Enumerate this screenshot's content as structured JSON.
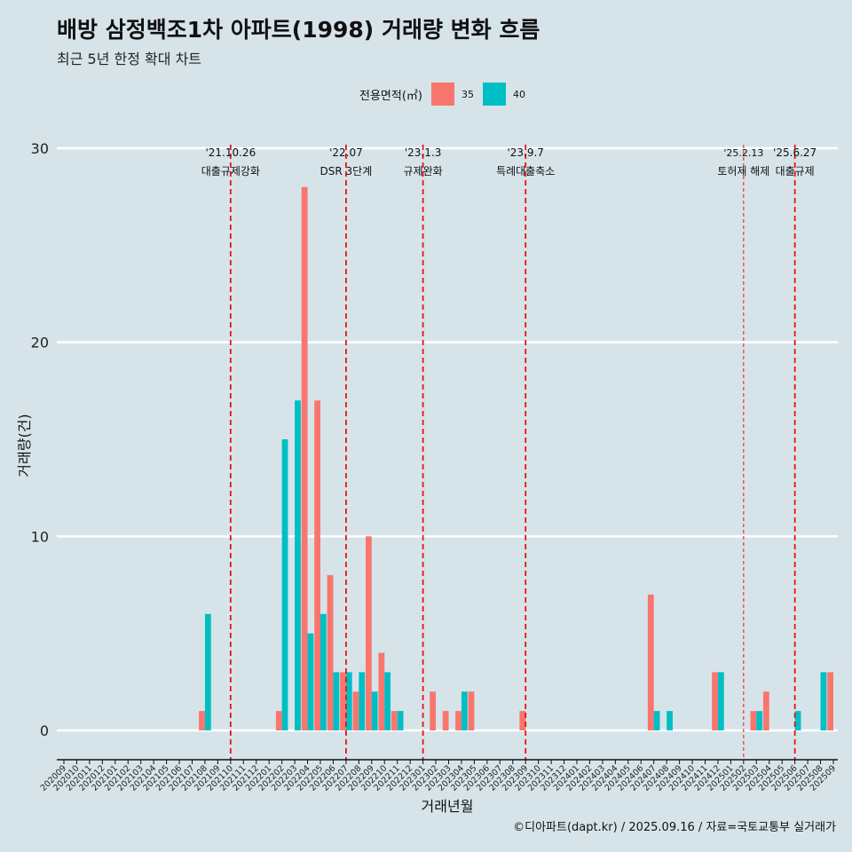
{
  "title": "배방 삼정백조1차 아파트(1998) 거래량 변화 흐름",
  "subtitle": "최근 5년 한정 확대 차트",
  "caption": "©디아파트(dapt.kr) / 2025.09.16 / 자료=국토교통부 실거래가",
  "legend": {
    "title": "전용면적(㎡)",
    "items": [
      {
        "label": "35",
        "color": "#f8766d"
      },
      {
        "label": "40",
        "color": "#00bfc4"
      }
    ]
  },
  "chart_data": {
    "type": "bar",
    "xlabel": "거래년월",
    "ylabel": "거래량(건)",
    "ylim": [
      0,
      30
    ],
    "yticks": [
      0,
      10,
      20,
      30
    ],
    "grid": true,
    "legend_position": "top",
    "categories": [
      "202009",
      "202010",
      "202011",
      "202012",
      "202101",
      "202102",
      "202103",
      "202104",
      "202105",
      "202106",
      "202107",
      "202108",
      "202109",
      "202110",
      "202111",
      "202112",
      "202201",
      "202202",
      "202203",
      "202204",
      "202205",
      "202206",
      "202207",
      "202208",
      "202209",
      "202210",
      "202211",
      "202212",
      "202301",
      "202302",
      "202303",
      "202304",
      "202305",
      "202306",
      "202307",
      "202308",
      "202309",
      "202310",
      "202311",
      "202312",
      "202401",
      "202402",
      "202403",
      "202404",
      "202405",
      "202406",
      "202407",
      "202408",
      "202409",
      "202410",
      "202411",
      "202412",
      "202501",
      "202502",
      "202503",
      "202504",
      "202505",
      "202506",
      "202507",
      "202508",
      "202509"
    ],
    "series": [
      {
        "name": "35",
        "color": "#f8766d",
        "values": [
          0,
          0,
          0,
          0,
          0,
          0,
          0,
          0,
          0,
          0,
          0,
          1,
          0,
          0,
          0,
          0,
          0,
          1,
          0,
          28,
          17,
          8,
          3,
          2,
          10,
          4,
          1,
          0,
          0,
          2,
          1,
          1,
          2,
          0,
          0,
          0,
          1,
          0,
          0,
          0,
          0,
          0,
          0,
          0,
          0,
          0,
          7,
          0,
          0,
          0,
          0,
          3,
          0,
          0,
          1,
          2,
          0,
          0,
          0,
          0,
          3
        ]
      },
      {
        "name": "40",
        "color": "#00bfc4",
        "values": [
          0,
          0,
          0,
          0,
          0,
          0,
          0,
          0,
          0,
          0,
          0,
          6,
          0,
          0,
          0,
          0,
          0,
          15,
          17,
          5,
          6,
          3,
          3,
          3,
          2,
          3,
          1,
          0,
          0,
          0,
          0,
          2,
          0,
          0,
          0,
          0,
          0,
          0,
          0,
          0,
          0,
          0,
          0,
          0,
          0,
          0,
          1,
          1,
          0,
          0,
          0,
          3,
          0,
          0,
          1,
          0,
          0,
          1,
          0,
          3,
          0
        ]
      }
    ],
    "annotations": [
      {
        "date_label": "'21.10.26",
        "text": "대출규제강화",
        "category": "202110",
        "style": "dashed"
      },
      {
        "date_label": "'22.07",
        "text": "DSR 3단계",
        "category": "202207",
        "style": "dashed"
      },
      {
        "date_label": "'23.1.3",
        "text": "규제완화",
        "category": "202301",
        "style": "dashed"
      },
      {
        "date_label": "'23.9.7",
        "text": "특례대출축소",
        "category": "202309",
        "style": "dashed"
      },
      {
        "date_label": "'25.2.13",
        "text": "토허제 해제",
        "category": "202502",
        "style": "thin"
      },
      {
        "date_label": "'25.6.27",
        "text": "대출규제",
        "category": "202506",
        "style": "dashed"
      }
    ]
  }
}
